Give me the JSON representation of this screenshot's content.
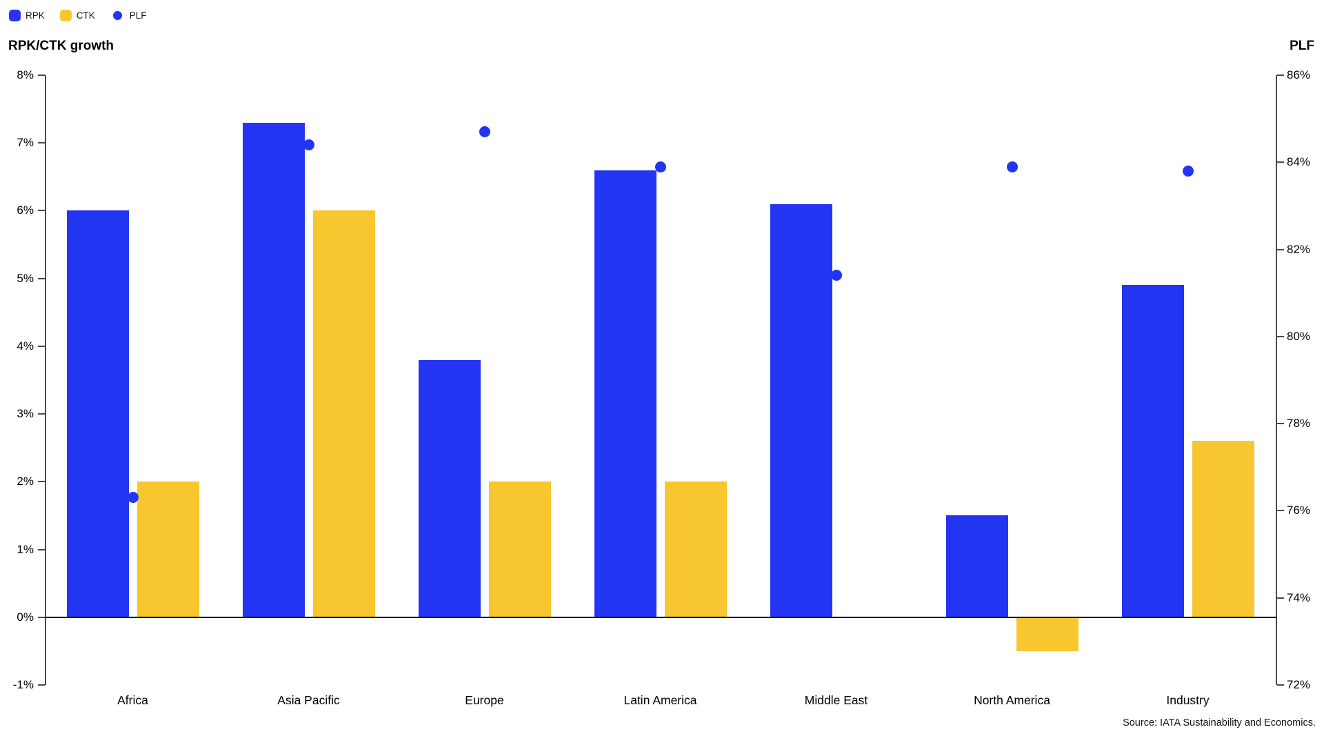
{
  "legend": {
    "items": [
      {
        "label": "RPK",
        "marker": "square",
        "color": "#2334F2"
      },
      {
        "label": "CTK",
        "marker": "square",
        "color": "#F8C72F"
      },
      {
        "label": "PLF",
        "marker": "dot",
        "color": "#2334F2"
      }
    ]
  },
  "titles": {
    "left_axis_title": "RPK/CTK growth",
    "right_axis_title": "PLF"
  },
  "source": "Source: IATA Sustainability and Economics.",
  "chart_data": {
    "type": "bar",
    "subtype": "grouped bars with scatter overlay on secondary axis",
    "categories": [
      "Africa",
      "Asia Pacific",
      "Europe",
      "Latin America",
      "Middle East",
      "North America",
      "Industry"
    ],
    "series": [
      {
        "name": "RPK",
        "type": "bar",
        "axis": "left",
        "color": "#2334F2",
        "values": [
          6.0,
          7.3,
          3.8,
          6.6,
          6.1,
          1.5,
          4.9
        ]
      },
      {
        "name": "CTK",
        "type": "bar",
        "axis": "left",
        "color": "#F8C72F",
        "values": [
          2.0,
          6.0,
          2.0,
          2.0,
          null,
          -0.5,
          2.6
        ]
      },
      {
        "name": "PLF",
        "type": "scatter",
        "axis": "right",
        "color": "#2334F2",
        "values": [
          76.3,
          84.4,
          84.7,
          83.9,
          81.4,
          83.9,
          83.8
        ]
      }
    ],
    "left_axis": {
      "label": "RPK/CTK growth",
      "min": -1,
      "max": 8,
      "tick_step": 1,
      "tick_suffix": "%"
    },
    "right_axis": {
      "label": "PLF",
      "min": 72,
      "max": 86,
      "tick_step": 2,
      "tick_suffix": "%"
    },
    "grid": false,
    "legend_position": "top-left",
    "title": "",
    "xlabel": "",
    "ylabel_left": "RPK/CTK growth",
    "ylabel_right": "PLF"
  }
}
